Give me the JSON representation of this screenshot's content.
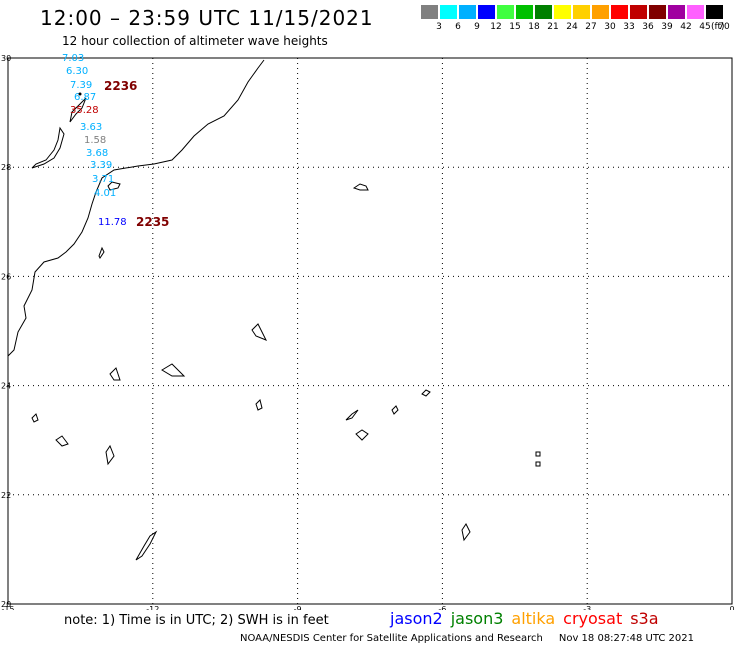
{
  "header": {
    "title": "12:00 – 23:59 UTC 11/15/2021",
    "subtitle": "12 hour collection of altimeter wave heights"
  },
  "legend": {
    "unit": "(ft)",
    "bins": [
      {
        "label": "3",
        "color": "#808080"
      },
      {
        "label": "6",
        "color": "#00ffff"
      },
      {
        "label": "9",
        "color": "#00b0ff"
      },
      {
        "label": "12",
        "color": "#0000ff"
      },
      {
        "label": "15",
        "color": "#40ff40"
      },
      {
        "label": "18",
        "color": "#00c000"
      },
      {
        "label": "21",
        "color": "#008000"
      },
      {
        "label": "24",
        "color": "#ffff00"
      },
      {
        "label": "27",
        "color": "#ffd000"
      },
      {
        "label": "30",
        "color": "#ffa000"
      },
      {
        "label": "33",
        "color": "#ff0000"
      },
      {
        "label": "36",
        "color": "#c00000"
      },
      {
        "label": "39",
        "color": "#800000"
      },
      {
        "label": "42",
        "color": "#a000a0"
      },
      {
        "label": "45",
        "color": "#ff60ff"
      },
      {
        "label": "70",
        "color": "#000000"
      }
    ]
  },
  "map": {
    "lon_ticks": [
      "-15",
      "-12",
      "-9",
      "-6",
      "-3",
      "0"
    ],
    "lat_ticks": [
      "30",
      "28",
      "26",
      "24",
      "22",
      "20"
    ],
    "lon_range": [
      -15,
      0
    ],
    "lat_range": [
      20,
      30
    ],
    "grid_color": "#000000"
  },
  "passes": [
    {
      "label": "2236",
      "color": "#800000"
    },
    {
      "label": "2235",
      "color": "#800000"
    }
  ],
  "observations": [
    {
      "value": "7.03",
      "color": "#00b0ff"
    },
    {
      "value": "6.30",
      "color": "#00b0ff"
    },
    {
      "value": "7.39",
      "color": "#00b0ff"
    },
    {
      "value": "6.87",
      "color": "#00b0ff"
    },
    {
      "value": "35.28",
      "color": "#c00000"
    },
    {
      "value": "3.63",
      "color": "#00b0ff"
    },
    {
      "value": "1.58",
      "color": "#808080"
    },
    {
      "value": "3.68",
      "color": "#00b0ff"
    },
    {
      "value": "3.39",
      "color": "#00b0ff"
    },
    {
      "value": "3.71",
      "color": "#00b0ff"
    },
    {
      "value": "4.01",
      "color": "#00b0ff"
    },
    {
      "value": "11.78",
      "color": "#0000ff"
    }
  ],
  "footer": {
    "note": "note: 1) Time is in UTC; 2) SWH is in feet",
    "satellites": [
      {
        "name": "jason2",
        "color": "#0000ff"
      },
      {
        "name": "jason3",
        "color": "#008000"
      },
      {
        "name": "altika",
        "color": "#ffa000"
      },
      {
        "name": "cryosat",
        "color": "#ff0000"
      },
      {
        "name": "s3a",
        "color": "#c00000"
      }
    ],
    "credit": "NOAA/NESDIS Center for Satellite Applications and Research",
    "timestamp": "Nov 18 08:27:48 UTC 2021"
  }
}
